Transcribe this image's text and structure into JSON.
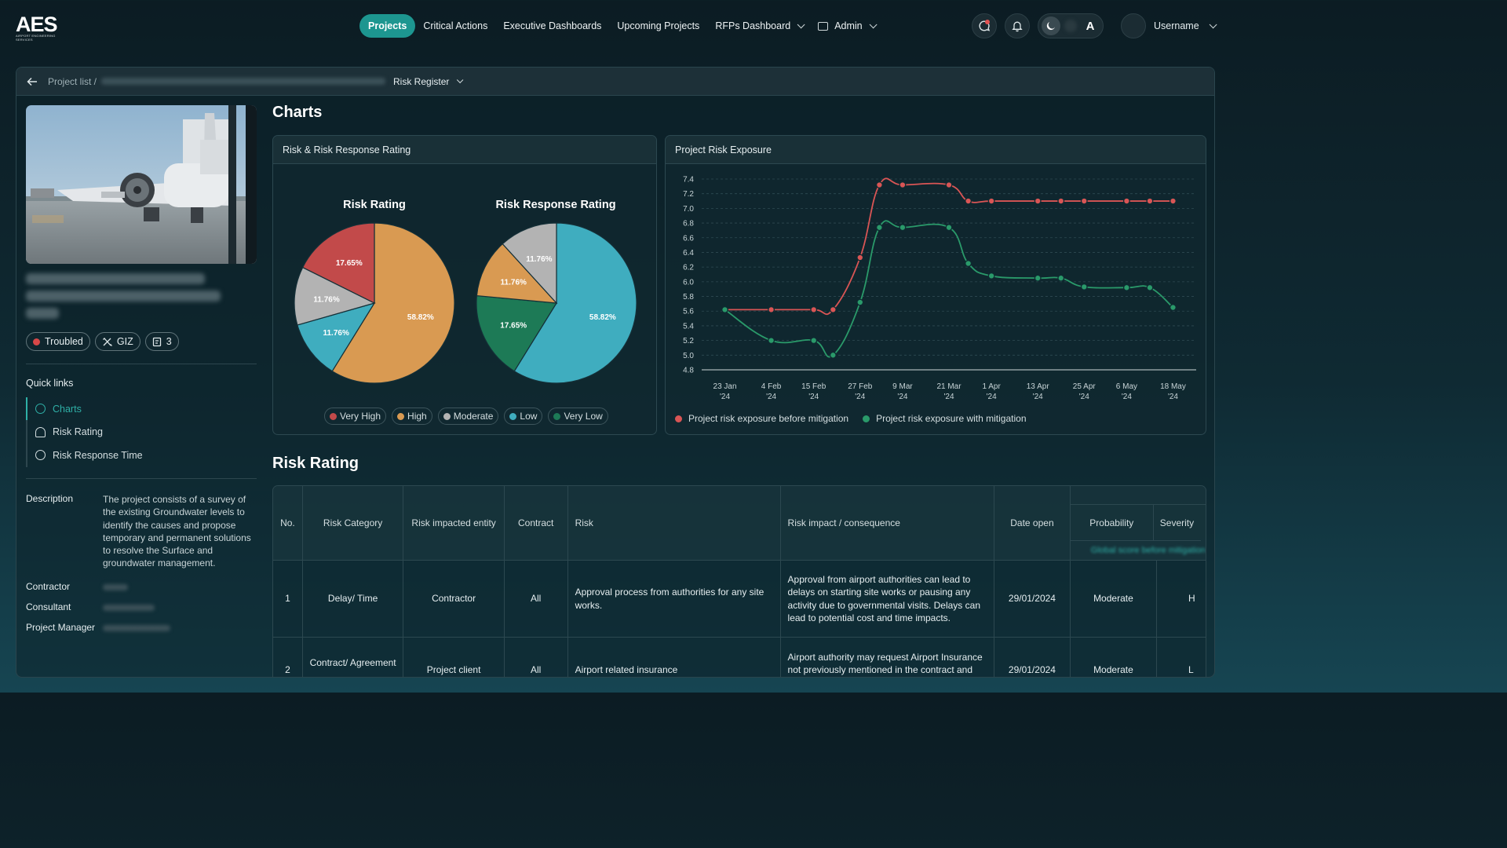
{
  "brand": {
    "name": "AES",
    "tagline": "AIRPORT ENGINEERING SERVICES"
  },
  "nav": {
    "items": [
      "Projects",
      "Critical Actions",
      "Executive Dashboards",
      "Upcoming Projects",
      "RFPs Dashboard",
      "Admin"
    ],
    "active": "Projects"
  },
  "user": {
    "name": "Username"
  },
  "breadcrumb": {
    "root": "Project list /",
    "current": "Risk Register"
  },
  "project": {
    "badges": {
      "status": "Troubled",
      "org": "GIZ",
      "count": "3"
    }
  },
  "quick_links": {
    "title": "Quick links",
    "items": [
      "Charts",
      "Risk Rating",
      "Risk Response Time"
    ]
  },
  "details": {
    "description_label": "Description",
    "description": "The project consists of a survey of the existing Groundwater levels to identify the causes and propose temporary and permanent solutions to resolve the Surface and groundwater management.",
    "contractor_label": "Contractor",
    "consultant_label": "Consultant",
    "manager_label": "Project Manager"
  },
  "charts_section": {
    "title": "Charts"
  },
  "chart_data": [
    {
      "type": "pie",
      "card_title": "Risk & Risk Response Rating",
      "title": "Risk Rating",
      "slices": [
        {
          "label": "High",
          "value": 58.82,
          "color": "#d99a52"
        },
        {
          "label": "Low",
          "value": 11.76,
          "color": "#3fadbf"
        },
        {
          "label": "Moderate",
          "value": 11.76,
          "color": "#b3b3b3"
        },
        {
          "label": "Very High",
          "value": 17.65,
          "color": "#c24a4a"
        }
      ]
    },
    {
      "type": "pie",
      "title": "Risk Response Rating",
      "slices": [
        {
          "label": "Low",
          "value": 58.82,
          "color": "#3fadbf"
        },
        {
          "label": "Very Low",
          "value": 17.65,
          "color": "#1d7a56"
        },
        {
          "label": "High",
          "value": 11.76,
          "color": "#d99a52"
        },
        {
          "label": "Moderate",
          "value": 11.76,
          "color": "#b3b3b3"
        }
      ],
      "legend": [
        {
          "label": "Very High",
          "color": "#c24a4a"
        },
        {
          "label": "High",
          "color": "#d99a52"
        },
        {
          "label": "Moderate",
          "color": "#b3b3b3"
        },
        {
          "label": "Low",
          "color": "#3fadbf"
        },
        {
          "label": "Very Low",
          "color": "#1d7a56"
        }
      ]
    },
    {
      "type": "line",
      "card_title": "Project Risk Exposure",
      "x": [
        "2024-01-23",
        "2024-02-04",
        "2024-02-15",
        "2024-02-20",
        "2024-02-27",
        "2024-03-03",
        "2024-03-09",
        "2024-03-21",
        "2024-03-26",
        "2024-04-01",
        "2024-04-13",
        "2024-04-19",
        "2024-04-25",
        "2024-05-06",
        "2024-05-12",
        "2024-05-18"
      ],
      "x_ticks": [
        {
          "date": "2024-01-23",
          "label": [
            "23 Jan",
            "'24"
          ]
        },
        {
          "date": "2024-02-04",
          "label": [
            "4 Feb",
            "'24"
          ]
        },
        {
          "date": "2024-02-15",
          "label": [
            "15 Feb",
            "'24"
          ]
        },
        {
          "date": "2024-02-27",
          "label": [
            "27 Feb",
            "'24"
          ]
        },
        {
          "date": "2024-03-09",
          "label": [
            "9 Mar",
            "'24"
          ]
        },
        {
          "date": "2024-03-21",
          "label": [
            "21 Mar",
            "'24"
          ]
        },
        {
          "date": "2024-04-01",
          "label": [
            "1 Apr",
            "'24"
          ]
        },
        {
          "date": "2024-04-13",
          "label": [
            "13 Apr",
            "'24"
          ]
        },
        {
          "date": "2024-04-25",
          "label": [
            "25 Apr",
            "'24"
          ]
        },
        {
          "date": "2024-05-06",
          "label": [
            "6 May",
            "'24"
          ]
        },
        {
          "date": "2024-05-18",
          "label": [
            "18 May",
            "'24"
          ]
        }
      ],
      "ylim": [
        4.8,
        7.4
      ],
      "yticks": [
        4.8,
        5.0,
        5.2,
        5.4,
        5.6,
        5.8,
        6.0,
        6.2,
        6.4,
        6.6,
        6.8,
        7.0,
        7.2,
        7.4
      ],
      "series": [
        {
          "name": "Project risk exposure before mitigation",
          "color": "#d95555",
          "values": [
            5.62,
            5.62,
            5.62,
            5.62,
            6.33,
            7.32,
            7.32,
            7.32,
            7.1,
            7.1,
            7.1,
            7.1,
            7.1,
            7.1,
            7.1,
            7.1
          ]
        },
        {
          "name": "Project risk exposure with mitigation",
          "color": "#2a9a6a",
          "values": [
            5.62,
            5.2,
            5.2,
            5.0,
            5.72,
            6.74,
            6.74,
            6.74,
            6.25,
            6.08,
            6.05,
            6.05,
            5.93,
            5.92,
            5.92,
            5.65
          ]
        }
      ],
      "grid": true,
      "legend": "bottom-left"
    }
  ],
  "risk_section": {
    "title": "Risk Rating"
  },
  "table": {
    "columns": [
      "No.",
      "Risk Category",
      "Risk impacted entity",
      "Contract",
      "Risk",
      "Risk impact / consequence",
      "Date open"
    ],
    "subcolumns": [
      "Probability",
      "Severity"
    ],
    "rows": [
      {
        "no": "1",
        "category": "Delay/ Time",
        "entity": "Contractor",
        "contract": "All",
        "risk": "Approval process from authorities for any site works.",
        "impact": "Approval from airport authorities can lead to delays on starting site works or pausing any activity due to governmental visits. Delays can lead to potential cost and time impacts.",
        "date": "29/01/2024",
        "probability": "Moderate",
        "severity": "High"
      },
      {
        "no": "2",
        "category": "Contract/ Agreement",
        "entity": "Project client",
        "contract": "All",
        "risk": "Airport related insurance",
        "impact": "Airport authority may request Airport Insurance not previously mentioned in the contract and will",
        "date": "29/01/2024",
        "probability": "Moderate",
        "severity": "Low"
      }
    ]
  }
}
